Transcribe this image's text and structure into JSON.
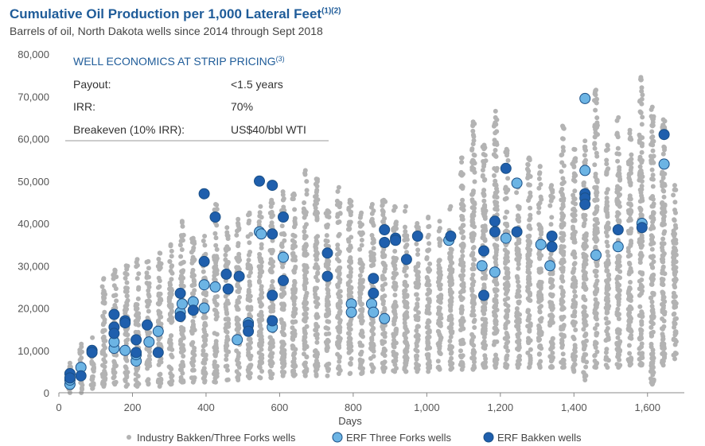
{
  "header": {
    "title": "Cumulative Oil Production per 1,000 Lateral Feet",
    "title_sup": "(1)(2)",
    "subtitle": "Barrels of oil, North Dakota wells since 2014 through Sept 2018"
  },
  "economics": {
    "title": "WELL ECONOMICS AT STRIP PRICING",
    "title_sup": "(3)",
    "rows": [
      {
        "label": "Payout:",
        "value": "<1.5 years"
      },
      {
        "label": "IRR:",
        "value": "70%"
      },
      {
        "label": "Breakeven (10% IRR):",
        "value": "US$40/bbl WTI"
      }
    ]
  },
  "colors": {
    "industry": "#b3b3b3",
    "three_forks_fill": "#6cb4e4",
    "bakken_fill": "#1f5fad",
    "marker_stroke": "#1a4f86",
    "title": "#1f5c99"
  },
  "chart_data": {
    "type": "scatter",
    "xlabel": "Days",
    "ylabel": "",
    "xlim": [
      0,
      1700
    ],
    "ylim": [
      0,
      80000
    ],
    "xticks": [
      0,
      200,
      400,
      600,
      800,
      1000,
      1200,
      1400,
      1600
    ],
    "xtick_labels": [
      "0",
      "200",
      "400",
      "600",
      "800",
      "1,000",
      "1,200",
      "1,400",
      "1,600"
    ],
    "yticks": [
      0,
      10000,
      20000,
      30000,
      40000,
      50000,
      60000,
      70000,
      80000
    ],
    "ytick_labels": [
      "0",
      "10,000",
      "20,000",
      "30,000",
      "40,000",
      "50,000",
      "60,000",
      "70,000",
      "80,000"
    ],
    "legend_position": "bottom",
    "industry_columns": {
      "days": [
        30,
        61,
        91,
        122,
        152,
        183,
        213,
        243,
        274,
        304,
        335,
        365,
        396,
        426,
        457,
        487,
        518,
        548,
        578,
        609,
        639,
        670,
        700,
        730,
        761,
        791,
        822,
        852,
        883,
        913,
        943,
        974,
        1004,
        1035,
        1065,
        1096,
        1126,
        1156,
        1187,
        1217,
        1248,
        1278,
        1308,
        1339,
        1369,
        1400,
        1430,
        1460,
        1491,
        1521,
        1552,
        1582,
        1613,
        1643,
        1674
      ],
      "min": [
        0,
        0,
        1000,
        1500,
        2000,
        1500,
        1500,
        2000,
        1500,
        2000,
        2500,
        2500,
        2500,
        2500,
        3000,
        3000,
        3500,
        3500,
        3500,
        4000,
        4000,
        4000,
        4000,
        4000,
        4500,
        4500,
        4500,
        5000,
        5000,
        5000,
        5000,
        5000,
        5000,
        5500,
        5500,
        5500,
        5500,
        6000,
        6000,
        6000,
        6000,
        6000,
        6000,
        6000,
        6000,
        5000,
        3000,
        6000,
        6000,
        6000,
        6500,
        6500,
        2000,
        6500,
        8000
      ],
      "max": [
        7000,
        11500,
        13000,
        27000,
        29000,
        30000,
        31500,
        31000,
        33000,
        35000,
        40500,
        36500,
        37000,
        44500,
        39000,
        41000,
        42500,
        44000,
        45500,
        47500,
        47000,
        52500,
        50500,
        43000,
        48500,
        45500,
        42500,
        44500,
        45500,
        44000,
        44000,
        40000,
        41500,
        40500,
        44000,
        55500,
        64000,
        58500,
        66500,
        57500,
        48500,
        55500,
        53500,
        49000,
        63000,
        57500,
        59500,
        71500,
        58500,
        65000,
        62000,
        74500,
        67500,
        64500,
        49000
      ]
    },
    "series": [
      {
        "name": "Industry Bakken/Three Forks wells",
        "note": "dense columns of grey points per ~30-day interval, spanning the min/max envelope above"
      },
      {
        "name": "ERF Three Forks wells",
        "points": [
          [
            30,
            2000
          ],
          [
            30,
            3000
          ],
          [
            60,
            6000
          ],
          [
            150,
            10500
          ],
          [
            150,
            12000
          ],
          [
            180,
            10000
          ],
          [
            210,
            7500
          ],
          [
            210,
            9000
          ],
          [
            245,
            12000
          ],
          [
            270,
            14500
          ],
          [
            330,
            19000
          ],
          [
            335,
            21000
          ],
          [
            365,
            21500
          ],
          [
            395,
            20000
          ],
          [
            395,
            25500
          ],
          [
            425,
            25000
          ],
          [
            485,
            12500
          ],
          [
            515,
            16500
          ],
          [
            545,
            38000
          ],
          [
            550,
            37500
          ],
          [
            580,
            15500
          ],
          [
            610,
            32000
          ],
          [
            795,
            21000
          ],
          [
            795,
            19000
          ],
          [
            850,
            21000
          ],
          [
            855,
            19000
          ],
          [
            885,
            17500
          ],
          [
            1060,
            36000
          ],
          [
            1150,
            30000
          ],
          [
            1185,
            28500
          ],
          [
            1215,
            36500
          ],
          [
            1245,
            49500
          ],
          [
            1310,
            35000
          ],
          [
            1335,
            30000
          ],
          [
            1430,
            69500
          ],
          [
            1430,
            52500
          ],
          [
            1460,
            32500
          ],
          [
            1520,
            34500
          ],
          [
            1585,
            40000
          ],
          [
            1645,
            54000
          ]
        ]
      },
      {
        "name": "ERF Bakken wells",
        "points": [
          [
            30,
            4500
          ],
          [
            30,
            3500
          ],
          [
            60,
            4000
          ],
          [
            90,
            10000
          ],
          [
            90,
            9500
          ],
          [
            150,
            18500
          ],
          [
            150,
            15500
          ],
          [
            150,
            14000
          ],
          [
            180,
            17000
          ],
          [
            180,
            16500
          ],
          [
            210,
            9500
          ],
          [
            210,
            12500
          ],
          [
            240,
            16000
          ],
          [
            270,
            9500
          ],
          [
            330,
            23500
          ],
          [
            330,
            18000
          ],
          [
            365,
            19500
          ],
          [
            395,
            31000
          ],
          [
            395,
            47000
          ],
          [
            425,
            41500
          ],
          [
            455,
            28000
          ],
          [
            460,
            24500
          ],
          [
            490,
            27500
          ],
          [
            515,
            16000
          ],
          [
            515,
            14500
          ],
          [
            545,
            50000
          ],
          [
            580,
            49000
          ],
          [
            580,
            37500
          ],
          [
            580,
            23000
          ],
          [
            580,
            17000
          ],
          [
            610,
            41500
          ],
          [
            610,
            26500
          ],
          [
            730,
            33000
          ],
          [
            730,
            27500
          ],
          [
            855,
            27000
          ],
          [
            855,
            23500
          ],
          [
            885,
            38500
          ],
          [
            885,
            35500
          ],
          [
            915,
            36500
          ],
          [
            915,
            36000
          ],
          [
            945,
            31500
          ],
          [
            975,
            37000
          ],
          [
            1065,
            37000
          ],
          [
            1155,
            33500
          ],
          [
            1155,
            23000
          ],
          [
            1185,
            40500
          ],
          [
            1185,
            38000
          ],
          [
            1215,
            53000
          ],
          [
            1245,
            38000
          ],
          [
            1340,
            37000
          ],
          [
            1340,
            34500
          ],
          [
            1430,
            47000
          ],
          [
            1430,
            46000
          ],
          [
            1430,
            44500
          ],
          [
            1520,
            38500
          ],
          [
            1585,
            39000
          ],
          [
            1645,
            61000
          ]
        ]
      }
    ]
  },
  "legend": {
    "items": [
      {
        "label": "Industry Bakken/Three Forks wells"
      },
      {
        "label": "ERF Three Forks wells"
      },
      {
        "label": "ERF Bakken wells"
      }
    ]
  }
}
